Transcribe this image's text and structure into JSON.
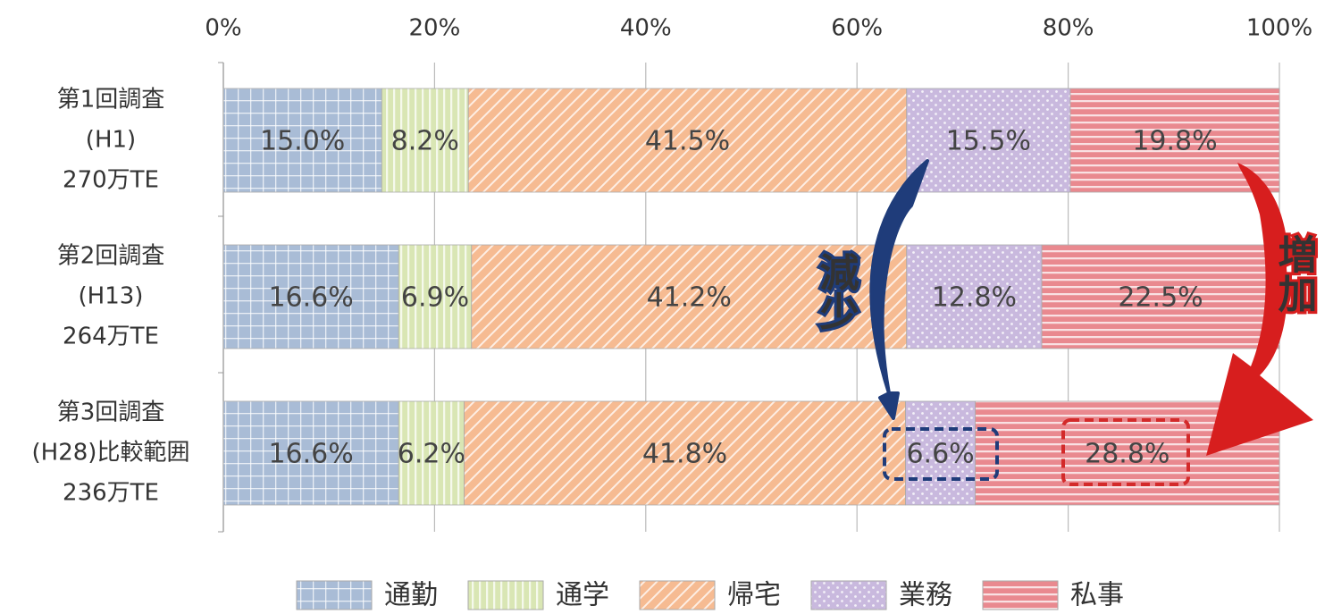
{
  "chart_data": {
    "type": "stacked-bar-horizontal",
    "categories": [
      [
        "第1回調査",
        "(H1)",
        "270万TE"
      ],
      [
        "第2回調査",
        "(H13)",
        "264万TE"
      ],
      [
        "第3回調査",
        "(H28)比較範囲",
        "236万TE"
      ]
    ],
    "series": [
      {
        "name": "通勤",
        "color": "#a9bcd6",
        "pattern": "grid",
        "values": [
          15.0,
          16.6,
          16.6
        ],
        "value_labels": [
          "15.0%",
          "16.6%",
          "16.6%"
        ]
      },
      {
        "name": "通学",
        "color": "#d9e6b4",
        "pattern": "vertical",
        "values": [
          8.2,
          6.9,
          6.2
        ],
        "value_labels": [
          "8.2%",
          "6.9%",
          "6.2%"
        ]
      },
      {
        "name": "帰宅",
        "color": "#f6bb92",
        "pattern": "diagonal",
        "values": [
          41.5,
          41.2,
          41.8
        ],
        "value_labels": [
          "41.5%",
          "41.2%",
          "41.8%"
        ]
      },
      {
        "name": "業務",
        "color": "#c9b9de",
        "pattern": "dots",
        "values": [
          15.5,
          12.8,
          6.6
        ],
        "value_labels": [
          "15.5%",
          "12.8%",
          "6.6%"
        ]
      },
      {
        "name": "私事",
        "color": "#e9898f",
        "pattern": "horizontal",
        "values": [
          19.8,
          22.5,
          28.8
        ],
        "value_labels": [
          "19.8%",
          "22.5%",
          "28.8%"
        ]
      }
    ],
    "xlim": [
      0,
      100
    ],
    "xticks": [
      {
        "value": 0,
        "label": "0%"
      },
      {
        "value": 20,
        "label": "20%"
      },
      {
        "value": 40,
        "label": "40%"
      },
      {
        "value": 60,
        "label": "60%"
      },
      {
        "value": 80,
        "label": "80%"
      },
      {
        "value": 100,
        "label": "100%"
      }
    ],
    "grid": true,
    "legend": "bottom",
    "annotations": [
      "減少",
      "増加"
    ]
  }
}
